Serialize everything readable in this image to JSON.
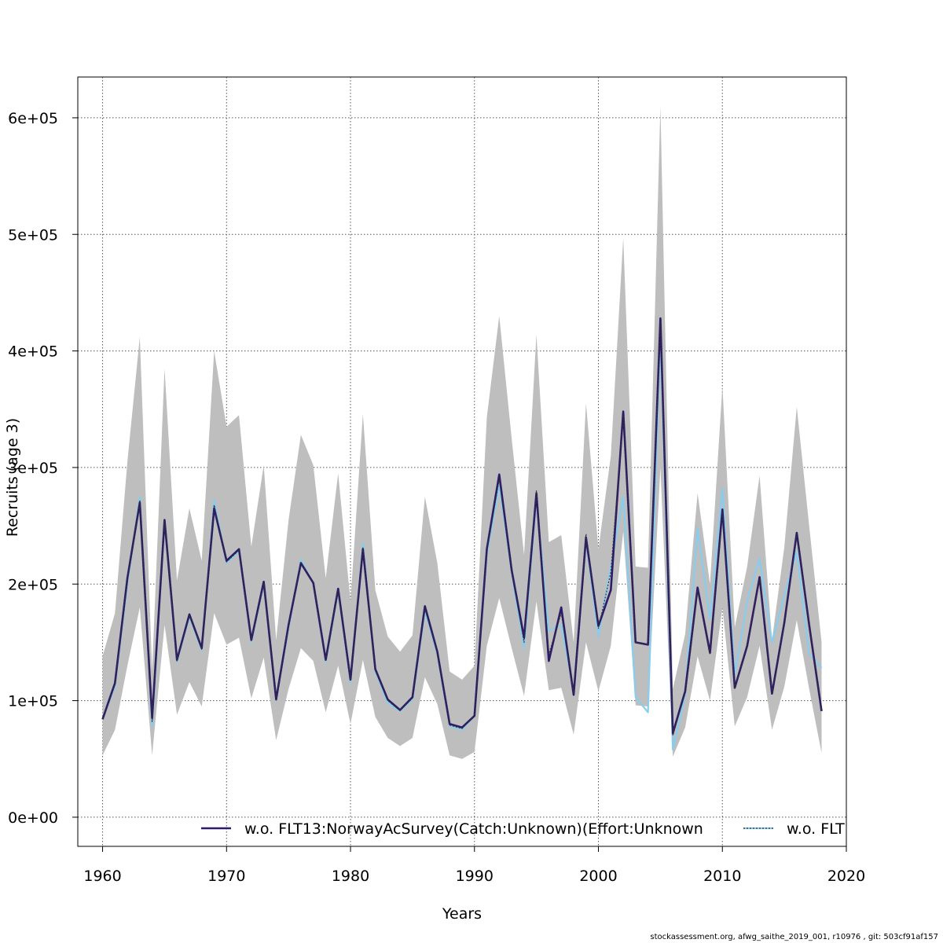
{
  "chart_data": {
    "type": "line",
    "title": "",
    "xlabel": "Years",
    "ylabel": "Recruits (age 3)",
    "xlim": [
      1958,
      2020
    ],
    "ylim": [
      -25000,
      635000
    ],
    "x_ticks": [
      1960,
      1970,
      1980,
      1990,
      2000,
      2010,
      2020
    ],
    "x_tick_labels": [
      "1960",
      "1970",
      "1980",
      "1990",
      "2000",
      "2010",
      "2020"
    ],
    "y_ticks": [
      0,
      100000,
      200000,
      300000,
      400000,
      500000,
      600000
    ],
    "y_tick_labels": [
      "0e+00",
      "1e+05",
      "2e+05",
      "3e+05",
      "4e+05",
      "5e+05",
      "6e+05"
    ],
    "grid": true,
    "legend_position": "bottom",
    "x": [
      1960,
      1961,
      1962,
      1963,
      1964,
      1965,
      1966,
      1967,
      1968,
      1969,
      1970,
      1971,
      1972,
      1973,
      1974,
      1975,
      1976,
      1977,
      1978,
      1979,
      1980,
      1981,
      1982,
      1983,
      1984,
      1985,
      1986,
      1987,
      1988,
      1989,
      1990,
      1991,
      1992,
      1993,
      1994,
      1995,
      1996,
      1997,
      1998,
      1999,
      2000,
      2001,
      2002,
      2003,
      2004,
      2005,
      2006,
      2007,
      2008,
      2009,
      2010,
      2011,
      2012,
      2013,
      2014,
      2015,
      2016,
      2017,
      2018
    ],
    "band": {
      "lower": [
        53000,
        75000,
        130000,
        180000,
        53000,
        165000,
        88000,
        116000,
        95000,
        175000,
        148000,
        154000,
        102000,
        137000,
        66000,
        110000,
        145000,
        134000,
        90000,
        130000,
        80000,
        135000,
        86000,
        68000,
        61000,
        68000,
        120000,
        97000,
        53000,
        50000,
        56000,
        147000,
        188000,
        145000,
        104000,
        185000,
        109000,
        111000,
        71000,
        150000,
        108000,
        147000,
        245000,
        96000,
        95000,
        300000,
        52000,
        77000,
        138000,
        100000,
        180000,
        78000,
        103000,
        147000,
        75000,
        112000,
        169000,
        110000,
        55000
      ],
      "upper": [
        138000,
        175000,
        305000,
        412000,
        126000,
        385000,
        203000,
        265000,
        220000,
        400000,
        335000,
        345000,
        232000,
        302000,
        152000,
        255000,
        328000,
        302000,
        205000,
        295000,
        185000,
        346000,
        195000,
        155000,
        142000,
        156000,
        275000,
        218000,
        125000,
        118000,
        130000,
        343000,
        430000,
        325000,
        225000,
        414000,
        236000,
        242000,
        150000,
        355000,
        230000,
        310000,
        497000,
        215000,
        214000,
        610000,
        110000,
        157000,
        278000,
        200000,
        370000,
        163000,
        215000,
        293000,
        152000,
        232000,
        352000,
        250000,
        150000
      ]
    },
    "series": [
      {
        "name": "w.o. FLT13:NorwayAcSurvey(Catch:Unknown)(Effort:Unknown",
        "color": "#2d1b69",
        "values": [
          84000,
          115000,
          205000,
          270000,
          85000,
          255000,
          135000,
          174000,
          145000,
          265000,
          220000,
          230000,
          152000,
          202000,
          101000,
          165000,
          218000,
          201000,
          135000,
          196000,
          118000,
          230000,
          127000,
          101000,
          92000,
          103000,
          181000,
          142000,
          80000,
          77000,
          87000,
          230000,
          294000,
          212000,
          154000,
          278000,
          134000,
          180000,
          105000,
          240000,
          164000,
          195000,
          348000,
          150000,
          148000,
          428000,
          72000,
          108000,
          197000,
          141000,
          264000,
          111000,
          147000,
          206000,
          106000,
          167000,
          244000,
          165000,
          91000
        ]
      },
      {
        "name": "w.o. FLT",
        "color": "#88ccee",
        "values": [
          84000,
          112000,
          200000,
          275000,
          78000,
          253000,
          133000,
          172000,
          143000,
          272000,
          218000,
          228000,
          150000,
          200000,
          100000,
          162000,
          221000,
          200000,
          133000,
          194000,
          115000,
          235000,
          125000,
          98000,
          91000,
          101000,
          177000,
          140000,
          78000,
          75000,
          87000,
          225000,
          285000,
          210000,
          145000,
          273000,
          160000,
          165000,
          108000,
          238000,
          155000,
          215000,
          275000,
          103000,
          90000,
          415000,
          58000,
          105000,
          248000,
          170000,
          282000,
          122000,
          185000,
          222000,
          150000,
          190000,
          228000,
          140000,
          128000
        ]
      },
      {
        "name": "",
        "color": "#333333",
        "dashed": true,
        "values": [
          84000,
          114000,
          203000,
          272000,
          82000,
          254000,
          134000,
          173000,
          144000,
          268000,
          219000,
          229000,
          151000,
          201000,
          100500,
          164000,
          219000,
          200500,
          134000,
          195000,
          117000,
          232000,
          126000,
          100000,
          91500,
          102000,
          179000,
          141000,
          79000,
          76000,
          87000,
          228000,
          290000,
          211000,
          150000,
          280000,
          140000,
          175000,
          106000,
          243000,
          162000,
          210000,
          345000,
          150000,
          148000,
          425000,
          70000,
          107000,
          195000,
          140000,
          262000,
          111000,
          148000,
          205000,
          106000,
          166000,
          243000,
          165000,
          92000
        ]
      }
    ]
  },
  "footer_text": "stockassessment.org, afwg_saithe_2019_001, r10976 , git: 503cf91af157"
}
